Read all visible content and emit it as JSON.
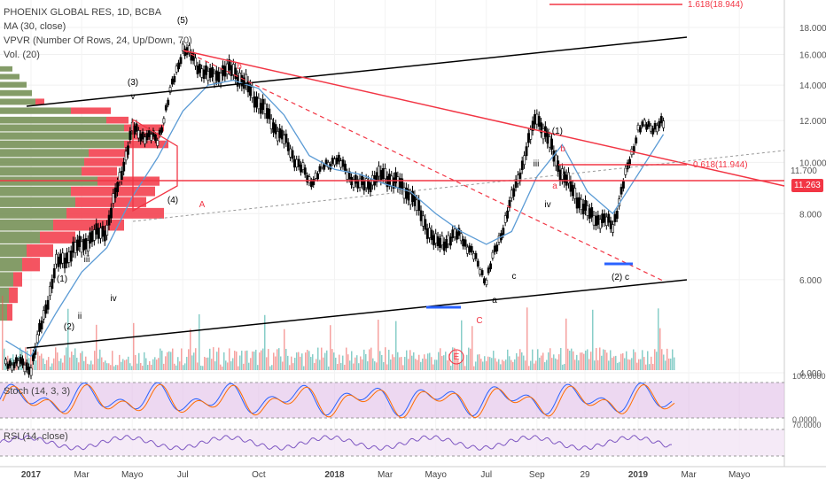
{
  "header": {
    "symbol_line": "PHOENIX GLOBAL RES, 1D, BCBA",
    "studies": [
      "MA (30, close)",
      "VPVR (Number Of Rows, 24, Up/Down, 70)",
      "Vol. (20)"
    ]
  },
  "panes": {
    "stoch_label": "Stoch (14, 3, 3)",
    "rsi_label": "RSI (14, close)"
  },
  "price_badge": {
    "value": "11.263",
    "color": "#f23645"
  },
  "last_price_label": "11.700",
  "colors": {
    "candle": "#000000",
    "ma": "#5b9bd5",
    "trend_red": "#f23645",
    "trend_black": "#000000",
    "vol_up": "#26a69a",
    "vol_down": "#ef5350",
    "vpvr_up": "#6e8b4e",
    "vpvr_down": "#f23645",
    "stoch_bg": "#e1bee7",
    "rsi_bg": "#f3e5f5",
    "support_blue": "#2962ff"
  },
  "chart_data": {
    "type": "line",
    "title": "PHOENIX GLOBAL RES, 1D, BCBA",
    "price_axis": {
      "ylim": [
        3.0,
        19.2
      ],
      "ticks": [
        "4.000",
        "6.000",
        "8.000",
        "10.000",
        "12.000",
        "14.000",
        "16.000",
        "18.000"
      ],
      "log_scale": true
    },
    "x_axis": {
      "labels": [
        "2017",
        "Mar",
        "Mayo",
        "Jul",
        "Oct",
        "2018",
        "Mar",
        "Mayo",
        "Jul",
        "Sep",
        "29",
        "2019",
        "Mar",
        "Mayo"
      ]
    },
    "price_series": {
      "name": "PHOENIX GLOBAL RES",
      "x": [
        "2016-12",
        "2017-01",
        "2017-02",
        "2017-03",
        "2017-04",
        "2017-05",
        "2017-06",
        "2017-07",
        "2017-08",
        "2017-09",
        "2017-10",
        "2017-11",
        "2017-12",
        "2018-01",
        "2018-02",
        "2018-03",
        "2018-04",
        "2018-05",
        "2018-06",
        "2018-07",
        "2018-08",
        "2018-09",
        "2018-10",
        "2018-11",
        "2018-12",
        "2019-01",
        "2019-02"
      ],
      "y": [
        4.2,
        4.1,
        6.4,
        7.0,
        7.5,
        11.5,
        11.0,
        16.5,
        14.5,
        15.0,
        13.0,
        11.0,
        9.2,
        10.2,
        9.0,
        9.5,
        8.7,
        7.0,
        7.3,
        6.0,
        8.5,
        12.3,
        9.5,
        8.0,
        7.6,
        11.6,
        11.8
      ]
    },
    "ma_series": {
      "name": "MA (30, close)",
      "x": [
        "2016-12",
        "2017-01",
        "2017-02",
        "2017-03",
        "2017-04",
        "2017-05",
        "2017-06",
        "2017-07",
        "2017-08",
        "2017-09",
        "2017-10",
        "2017-11",
        "2017-12",
        "2018-01",
        "2018-02",
        "2018-03",
        "2018-04",
        "2018-05",
        "2018-06",
        "2018-07",
        "2018-08",
        "2018-09",
        "2018-10",
        "2018-11",
        "2018-12",
        "2019-01",
        "2019-02"
      ],
      "y": [
        4.6,
        4.3,
        5.2,
        6.2,
        6.9,
        8.6,
        10.2,
        12.5,
        14.0,
        14.3,
        13.8,
        12.3,
        10.3,
        9.7,
        9.5,
        9.1,
        8.8,
        8.0,
        7.4,
        7.0,
        7.4,
        9.4,
        10.8,
        8.8,
        8.0,
        9.5,
        11.3
      ]
    },
    "levels": [
      {
        "label": "1.618(18.944)",
        "value": 18.944
      },
      {
        "label": "0.618(11.944)",
        "value": 11.944
      }
    ],
    "wave_labels": [
      "(5)",
      "(3)",
      "v",
      "(1)",
      "(2)",
      "ii",
      "iii",
      "iv",
      "(4)",
      "A",
      "b",
      "a",
      "c",
      "v (1)",
      "iii",
      "a",
      "iv",
      "b",
      "(2) c",
      "C",
      "E"
    ],
    "volume": {
      "ylim": [
        0,
        1
      ],
      "note": ""
    },
    "stoch": {
      "ylim": [
        0,
        100
      ],
      "ticks": [
        "100.0000",
        "0.0000"
      ],
      "bands": [
        80,
        20
      ]
    },
    "rsi": {
      "ylim": [
        0,
        100
      ],
      "ticks": [
        "70.0000"
      ],
      "bands": [
        70,
        30
      ]
    }
  }
}
